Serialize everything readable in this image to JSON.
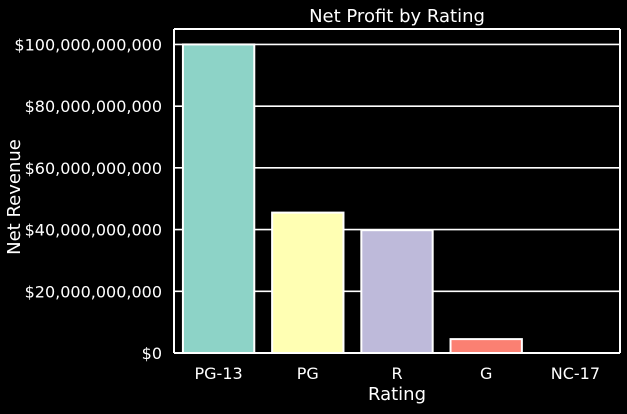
{
  "chart_data": {
    "type": "bar",
    "title": "Net Profit by Rating",
    "xlabel": "Rating",
    "ylabel": "Net Revenue",
    "categories": [
      "PG-13",
      "PG",
      "R",
      "G",
      "NC-17"
    ],
    "values": [
      100000000000,
      45500000000,
      39800000000,
      4500000000,
      0
    ],
    "colors": [
      "#8dd3c7",
      "#ffffb3",
      "#bebada",
      "#fb8072",
      "#80b1d3"
    ],
    "ylim": [
      0,
      105000000000
    ],
    "yticks": [
      0,
      20000000000,
      40000000000,
      60000000000,
      80000000000,
      100000000000
    ],
    "ytick_labels": [
      "$0",
      "$20,000,000,000",
      "$40,000,000,000",
      "$60,000,000,000",
      "$80,000,000,000",
      "$100,000,000,000"
    ],
    "grid": "horizontal",
    "background": "#000000",
    "foreground": "#ffffff"
  }
}
